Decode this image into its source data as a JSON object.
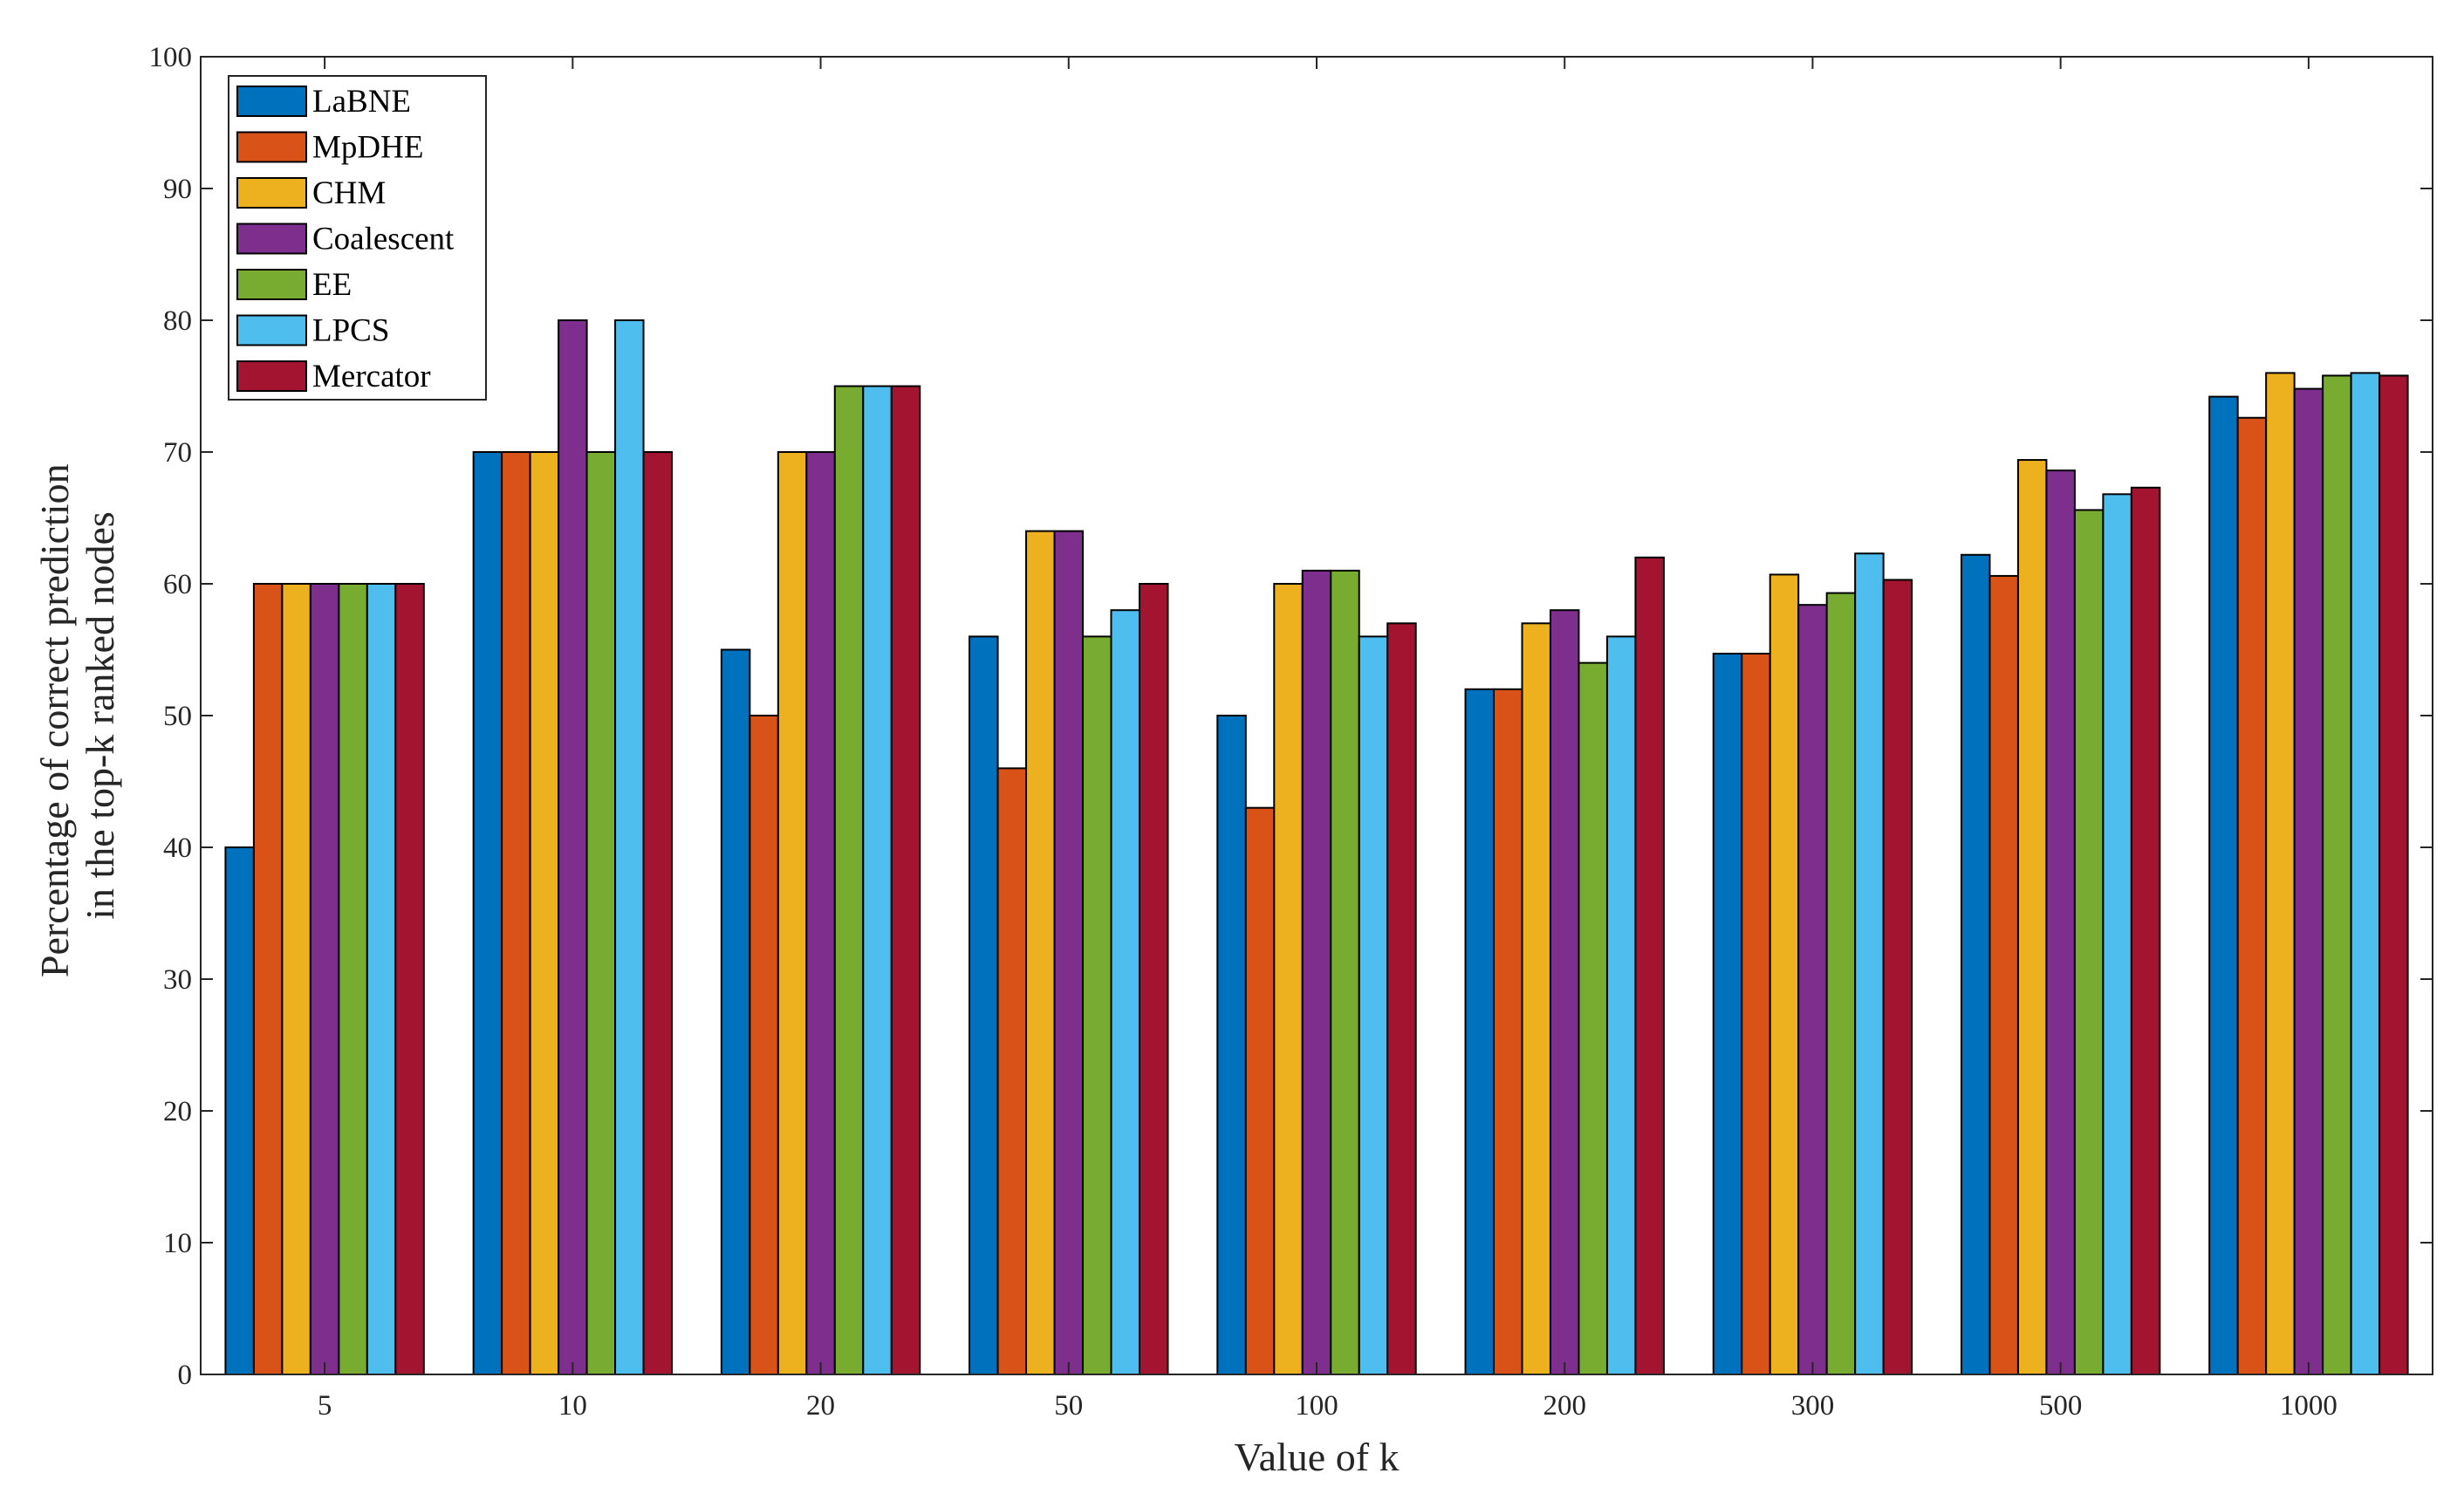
{
  "chart_data": {
    "type": "bar",
    "title": "",
    "xlabel": "Value of k",
    "ylabel_lines": [
      "Percentage of correct prediction",
      "in the top-k ranked nodes"
    ],
    "categories": [
      "5",
      "10",
      "20",
      "50",
      "100",
      "200",
      "300",
      "500",
      "1000"
    ],
    "ylim": [
      0,
      100
    ],
    "yticks": [
      0,
      10,
      20,
      30,
      40,
      50,
      60,
      70,
      80,
      90,
      100
    ],
    "grid": false,
    "legend_position": "top-left",
    "series": [
      {
        "name": "LaBNE",
        "color": "#0072BD",
        "values": [
          40,
          70,
          55,
          56,
          50,
          52,
          54.7,
          62.2,
          74.2
        ]
      },
      {
        "name": "MpDHE",
        "color": "#D95319",
        "values": [
          60,
          70,
          50,
          46,
          43,
          52,
          54.7,
          60.6,
          72.6
        ]
      },
      {
        "name": "CHM",
        "color": "#EDB120",
        "values": [
          60,
          70,
          70,
          64,
          60,
          57,
          60.7,
          69.4,
          76.0
        ]
      },
      {
        "name": "Coalescent",
        "color": "#7E2F8E",
        "values": [
          60,
          80,
          70,
          64,
          61,
          58,
          58.4,
          68.6,
          74.8
        ]
      },
      {
        "name": "EE",
        "color": "#77AC30",
        "values": [
          60,
          70,
          75,
          56,
          61,
          54,
          59.3,
          65.6,
          75.8
        ]
      },
      {
        "name": "LPCS",
        "color": "#4DBEEE",
        "values": [
          60,
          80,
          75,
          58,
          56,
          56,
          62.3,
          66.8,
          76.0
        ]
      },
      {
        "name": "Mercator",
        "color": "#A2142F",
        "values": [
          60,
          70,
          75,
          60,
          57,
          62,
          60.3,
          67.3,
          75.8
        ]
      }
    ]
  }
}
